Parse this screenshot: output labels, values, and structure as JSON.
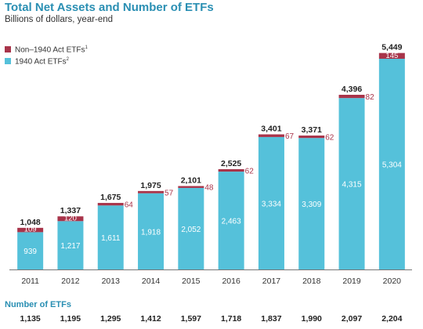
{
  "title": "Total Net Assets and Number of ETFs",
  "subtitle": "Billions of dollars, year-end",
  "legend": [
    {
      "label": "Non–1940 Act ETFs",
      "note": "1",
      "color": "#a8344a"
    },
    {
      "label": "1940 Act ETFs",
      "note": "2",
      "color": "#55c1da"
    }
  ],
  "chart_data": {
    "type": "bar",
    "stacked": true,
    "categories": [
      "2011",
      "2012",
      "2013",
      "2014",
      "2015",
      "2016",
      "2017",
      "2018",
      "2019",
      "2020"
    ],
    "series": [
      {
        "name": "1940 Act ETFs",
        "values": [
          939,
          1217,
          1611,
          1918,
          2052,
          2463,
          3334,
          3309,
          4315,
          5304
        ],
        "color": "#55c1da"
      },
      {
        "name": "Non–1940 Act ETFs",
        "values": [
          109,
          120,
          64,
          57,
          48,
          62,
          67,
          62,
          82,
          145
        ],
        "color": "#a8344a"
      }
    ],
    "totals": [
      1048,
      1337,
      1675,
      1975,
      2101,
      2525,
      3401,
      3371,
      4396,
      5449
    ],
    "ylim": [
      0,
      5600
    ],
    "grid": false
  },
  "counts": {
    "title": "Number of ETFs",
    "values": [
      "1,135",
      "1,195",
      "1,295",
      "1,412",
      "1,597",
      "1,718",
      "1,837",
      "1,990",
      "2,097",
      "2,204"
    ]
  }
}
